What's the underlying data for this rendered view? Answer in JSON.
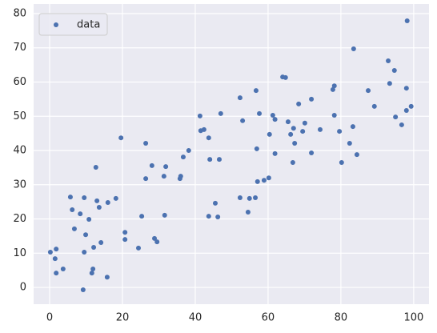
{
  "chart_data": {
    "type": "scatter",
    "x": [
      0.2,
      1.5,
      1.8,
      1.8,
      3.7,
      5.7,
      6.2,
      6.8,
      8.4,
      9.2,
      9.5,
      9.5,
      9.9,
      10.8,
      11.6,
      11.9,
      12.1,
      12.7,
      13.0,
      13.6,
      14.1,
      16.0,
      15.8,
      18.2,
      19.6,
      20.7,
      20.7,
      24.4,
      25.3,
      26.4,
      26.4,
      28.1,
      28.8,
      29.5,
      31.4,
      31.6,
      31.9,
      35.8,
      36.0,
      36.7,
      38.2,
      41.3,
      41.5,
      42.4,
      43.7,
      43.7,
      44.0,
      45.5,
      46.2,
      46.6,
      47.0,
      52.3,
      52.3,
      53.0,
      54.5,
      54.9,
      56.5,
      56.7,
      56.9,
      57.1,
      57.6,
      58.9,
      60.2,
      60.4,
      61.3,
      61.9,
      61.9,
      64.0,
      64.8,
      65.5,
      66.2,
      66.8,
      67.0,
      67.3,
      68.4,
      69.5,
      70.1,
      71.9,
      71.9,
      74.3,
      77.8,
      78.2,
      78.2,
      79.6,
      80.2,
      82.4,
      83.3,
      83.5,
      84.4,
      87.5,
      89.2,
      93.0,
      93.4,
      94.7,
      95.0,
      96.7,
      98.0,
      98.0,
      98.2,
      99.3
    ],
    "series": [
      {
        "name": "data",
        "color": "#4c72b0",
        "values": [
          10.3,
          8.4,
          11.2,
          4.2,
          5.4,
          26.4,
          22.7,
          17.1,
          21.5,
          -0.7,
          26.2,
          10.3,
          15.4,
          19.9,
          4.2,
          5.4,
          11.7,
          35.1,
          25.3,
          23.4,
          13.1,
          24.8,
          3.0,
          26.0,
          43.7,
          16.1,
          14.0,
          11.5,
          20.8,
          42.1,
          31.8,
          35.6,
          14.3,
          13.3,
          32.5,
          21.1,
          35.3,
          31.8,
          32.5,
          38.1,
          40.0,
          50.1,
          45.8,
          46.1,
          43.7,
          20.8,
          37.4,
          24.6,
          20.6,
          37.4,
          50.8,
          55.4,
          26.2,
          48.7,
          22.0,
          26.0,
          26.2,
          57.5,
          40.5,
          30.9,
          50.8,
          31.3,
          32.0,
          44.7,
          50.3,
          39.1,
          49.1,
          61.5,
          61.3,
          48.4,
          44.7,
          36.5,
          46.5,
          42.1,
          53.6,
          45.6,
          48.0,
          55.0,
          39.3,
          46.1,
          57.8,
          58.9,
          50.3,
          45.6,
          36.5,
          42.1,
          47.0,
          69.7,
          38.8,
          57.5,
          52.9,
          66.2,
          59.6,
          63.4,
          49.8,
          47.5,
          51.7,
          58.2,
          77.9,
          52.9
        ]
      }
    ],
    "xlim": [
      -4.4,
      104.2
    ],
    "ylim": [
      -4.9,
      82.8
    ],
    "xticks": [
      0,
      20,
      40,
      60,
      80,
      100
    ],
    "yticks": [
      0,
      10,
      20,
      30,
      40,
      50,
      60,
      70,
      80
    ],
    "grid": true,
    "legend": "upper left"
  }
}
